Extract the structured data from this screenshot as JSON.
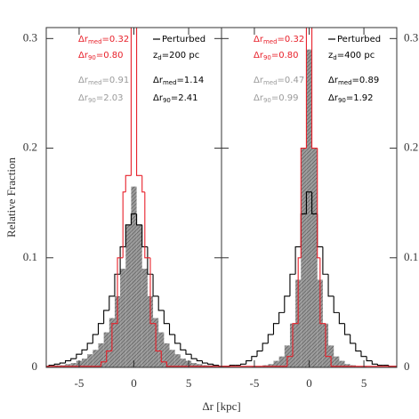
{
  "ylabel": "Relative Fraction",
  "xlabel": "Δr [kpc]",
  "chart_data": [
    {
      "type": "histogram",
      "xlim": [
        -8,
        8
      ],
      "ylim": [
        0,
        0.31
      ],
      "xticks": [
        -5,
        0,
        5
      ],
      "yticks": [
        0,
        0.1,
        0.2,
        0.3
      ],
      "ytick_side": "left",
      "bins": [
        -8.25,
        -7.75,
        -7.25,
        -6.75,
        -6.25,
        -5.75,
        -5.25,
        -4.75,
        -4.25,
        -3.75,
        -3.25,
        -2.75,
        -2.25,
        -1.75,
        -1.25,
        -0.75,
        -0.25,
        0.25,
        0.75,
        1.25,
        1.75,
        2.25,
        2.75,
        3.25,
        3.75,
        4.25,
        4.75,
        5.25,
        5.75,
        6.25,
        6.75,
        7.25,
        7.75,
        8.25
      ],
      "series": [
        {
          "style": "hatched",
          "color": "#9a9a9a",
          "values": [
            0.001,
            0.001,
            0.002,
            0.002,
            0.003,
            0.004,
            0.006,
            0.008,
            0.012,
            0.016,
            0.022,
            0.032,
            0.045,
            0.065,
            0.09,
            0.13,
            0.165,
            0.13,
            0.09,
            0.065,
            0.045,
            0.032,
            0.022,
            0.016,
            0.012,
            0.008,
            0.006,
            0.004,
            0.003,
            0.002,
            0.002,
            0.001,
            0.001
          ]
        },
        {
          "name": "Perturbed",
          "style": "step",
          "color": "#000000",
          "values": [
            0.001,
            0.002,
            0.003,
            0.004,
            0.006,
            0.008,
            0.012,
            0.016,
            0.022,
            0.03,
            0.04,
            0.052,
            0.065,
            0.085,
            0.11,
            0.13,
            0.14,
            0.13,
            0.11,
            0.085,
            0.065,
            0.052,
            0.04,
            0.03,
            0.022,
            0.016,
            0.012,
            0.008,
            0.006,
            0.004,
            0.003,
            0.002,
            0.001
          ]
        },
        {
          "style": "step",
          "color": "#e8202a",
          "bins": [
            -8,
            -3,
            -2.5,
            -2,
            -1.5,
            -1,
            -0.75,
            -0.25,
            0.25,
            0.75,
            1,
            1.5,
            2,
            2.5,
            3,
            8
          ],
          "values": [
            0.001,
            0.005,
            0.015,
            0.04,
            0.1,
            0.16,
            0.175,
            0.35,
            0.175,
            0.16,
            0.1,
            0.04,
            0.015,
            0.005,
            0.001
          ]
        }
      ],
      "annotations": [
        {
          "base": "Δr",
          "sub": "med",
          "rest": "=0.32",
          "color": "#e8202a"
        },
        {
          "base": "Δr",
          "sub": "90",
          "rest": "=0.80",
          "color": "#e8202a"
        },
        {
          "base": "Δr",
          "sub": "med",
          "rest": "=0.91",
          "color": "#9a9a9a"
        },
        {
          "base": "Δr",
          "sub": "90",
          "rest": "=2.03",
          "color": "#9a9a9a"
        },
        {
          "base": "Δr",
          "sub": "med",
          "rest": "=1.14",
          "color": "#000000"
        },
        {
          "base": "Δr",
          "sub": "90",
          "rest": "=2.41",
          "color": "#000000"
        },
        {
          "base": "z",
          "sub": "d",
          "rest": "=200 pc",
          "color": "#000000"
        }
      ]
    },
    {
      "type": "histogram",
      "xlim": [
        -8,
        8
      ],
      "ylim": [
        0,
        0.31
      ],
      "xticks": [
        -5,
        0,
        5
      ],
      "yticks": [
        0,
        0.1,
        0.2,
        0.3
      ],
      "ytick_side": "right",
      "bins": [
        -8.25,
        -7.75,
        -7.25,
        -6.75,
        -6.25,
        -5.75,
        -5.25,
        -4.75,
        -4.25,
        -3.75,
        -3.25,
        -2.75,
        -2.25,
        -1.75,
        -1.25,
        -0.75,
        -0.25,
        0.25,
        0.75,
        1.25,
        1.75,
        2.25,
        2.75,
        3.25,
        3.75,
        4.25,
        4.75,
        5.25,
        5.75,
        6.25,
        6.75,
        7.25,
        7.75,
        8.25
      ],
      "series": [
        {
          "style": "hatched",
          "color": "#9a9a9a",
          "values": [
            0,
            0,
            0,
            0,
            0,
            0,
            0.001,
            0.001,
            0.002,
            0.003,
            0.006,
            0.01,
            0.02,
            0.04,
            0.08,
            0.2,
            0.29,
            0.2,
            0.08,
            0.04,
            0.02,
            0.01,
            0.006,
            0.003,
            0.002,
            0.001,
            0.001,
            0,
            0,
            0,
            0,
            0,
            0
          ]
        },
        {
          "name": "Perturbed",
          "style": "step",
          "color": "#000000",
          "values": [
            0.001,
            0.001,
            0.002,
            0.002,
            0.003,
            0.006,
            0.01,
            0.015,
            0.022,
            0.03,
            0.04,
            0.05,
            0.065,
            0.085,
            0.11,
            0.14,
            0.16,
            0.14,
            0.11,
            0.085,
            0.065,
            0.05,
            0.04,
            0.03,
            0.022,
            0.015,
            0.01,
            0.006,
            0.003,
            0.002,
            0.002,
            0.001,
            0.001
          ]
        },
        {
          "style": "step",
          "color": "#e8202a",
          "bins": [
            -8,
            -2,
            -1.5,
            -1,
            -0.75,
            -0.25,
            0.25,
            0.75,
            1,
            1.5,
            2,
            8
          ],
          "values": [
            0.001,
            0.01,
            0.04,
            0.1,
            0.2,
            0.35,
            0.2,
            0.1,
            0.04,
            0.01,
            0.001
          ]
        }
      ],
      "annotations": [
        {
          "base": "Δr",
          "sub": "med",
          "rest": "=0.32",
          "color": "#e8202a"
        },
        {
          "base": "Δr",
          "sub": "90",
          "rest": "=0.80",
          "color": "#e8202a"
        },
        {
          "base": "Δr",
          "sub": "med",
          "rest": "=0.47",
          "color": "#9a9a9a"
        },
        {
          "base": "Δr",
          "sub": "90",
          "rest": "=0.99",
          "color": "#9a9a9a"
        },
        {
          "base": "Δr",
          "sub": "med",
          "rest": "=0.89",
          "color": "#000000"
        },
        {
          "base": "Δr",
          "sub": "90",
          "rest": "=1.92",
          "color": "#000000"
        },
        {
          "base": "z",
          "sub": "d",
          "rest": "=400 pc",
          "color": "#000000"
        }
      ]
    }
  ]
}
